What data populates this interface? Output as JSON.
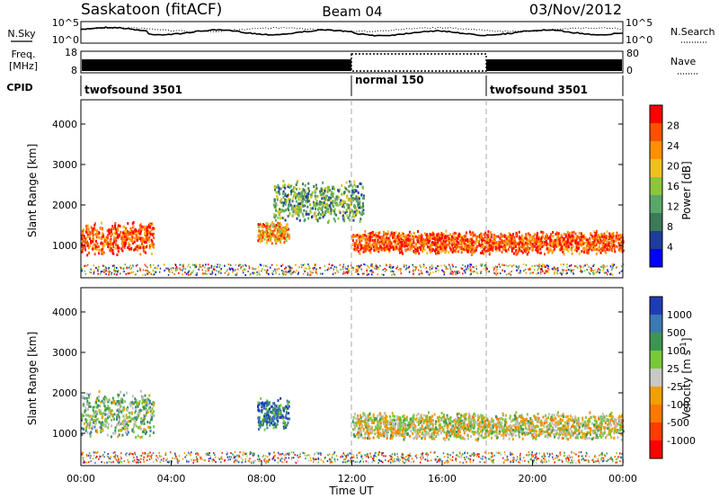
{
  "header": {
    "title": "Saskatoon (fitACF)",
    "beam": "Beam 04",
    "date": "03/Nov/2012"
  },
  "noise_panel": {
    "left_label": "N.Sky",
    "right_label": "N.Search",
    "tick_top": "10^5",
    "tick_bottom": "10^0"
  },
  "freq_panel": {
    "left_label_1": "Freq.",
    "left_label_2": "[MHz]",
    "right_label": "Nave",
    "left_ticks": [
      "18",
      "8"
    ],
    "right_ticks": [
      "80",
      "0"
    ]
  },
  "cpid_panel": {
    "label": "CPID",
    "segments": [
      {
        "name": "twofsound 3501",
        "start_h": 0,
        "end_h": 12
      },
      {
        "name": "normal 150",
        "start_h": 12,
        "end_h": 18
      },
      {
        "name": "twofsound 3501",
        "start_h": 18,
        "end_h": 24
      }
    ]
  },
  "colors": {
    "power_scale": [
      "#0000ff",
      "#1e3c9c",
      "#3c7a5a",
      "#5aa76a",
      "#8cc63c",
      "#f0c020",
      "#ff9000",
      "#ff5000",
      "#ff0000"
    ],
    "velocity_scale": [
      "#1e3cb4",
      "#3c78b4",
      "#3c9650",
      "#78c83c",
      "#c8c8c8",
      "#f0a000",
      "#ff7800",
      "#ff3c00",
      "#ff0000"
    ],
    "ground_scatter": "#bebebe"
  },
  "chart_data": [
    {
      "type": "heatmap",
      "name": "power",
      "ylabel": "Slant Range [km]",
      "xlabel": "Time UT",
      "xlim": [
        0,
        24
      ],
      "ylim": [
        200,
        4600
      ],
      "x_ticks": [
        "00:00",
        "04:00",
        "08:00",
        "12:00",
        "16:00",
        "20:00",
        "00:00"
      ],
      "y_ticks": [
        1000,
        2000,
        3000,
        4000
      ],
      "colorbar": {
        "label": "Power [dB]",
        "ticks": [
          "4",
          "8",
          "12",
          "16",
          "20",
          "24",
          "28"
        ]
      },
      "features": [
        {
          "t0": 0.0,
          "t1": 3.2,
          "r_center": 1200,
          "r_width": 700,
          "level": 7
        },
        {
          "t0": 7.8,
          "t1": 9.2,
          "r_center": 1350,
          "r_width": 500,
          "level": 6
        },
        {
          "t0": 8.5,
          "t1": 12.5,
          "r_center": 2100,
          "r_width": 900,
          "level": 3
        },
        {
          "t0": 12.0,
          "t1": 24.0,
          "r_center": 1100,
          "r_width": 500,
          "level": 7
        }
      ]
    },
    {
      "type": "heatmap",
      "name": "velocity",
      "ylabel": "Slant Range [km]",
      "xlabel": "Time UT",
      "xlim": [
        0,
        24
      ],
      "ylim": [
        200,
        4600
      ],
      "x_ticks": [
        "00:00",
        "04:00",
        "08:00",
        "12:00",
        "16:00",
        "20:00",
        "00:00"
      ],
      "y_ticks": [
        1000,
        2000,
        3000,
        4000
      ],
      "colorbar": {
        "label": "Velocity [m s^-1]",
        "ticks": [
          "1000",
          "500",
          "100",
          "25",
          "-25",
          "-100",
          "-500",
          "-1000"
        ]
      },
      "features": [
        {
          "t0": 0.0,
          "t1": 3.2,
          "r_center": 1500,
          "r_width": 1000,
          "level": 3
        },
        {
          "t0": 7.8,
          "t1": 9.2,
          "r_center": 1500,
          "r_width": 700,
          "level": 1
        },
        {
          "t0": 12.0,
          "t1": 24.0,
          "r_center": 1200,
          "r_width": 600,
          "level": 4
        }
      ]
    }
  ],
  "markers": {
    "vertical_lines_h": [
      12,
      18
    ]
  }
}
